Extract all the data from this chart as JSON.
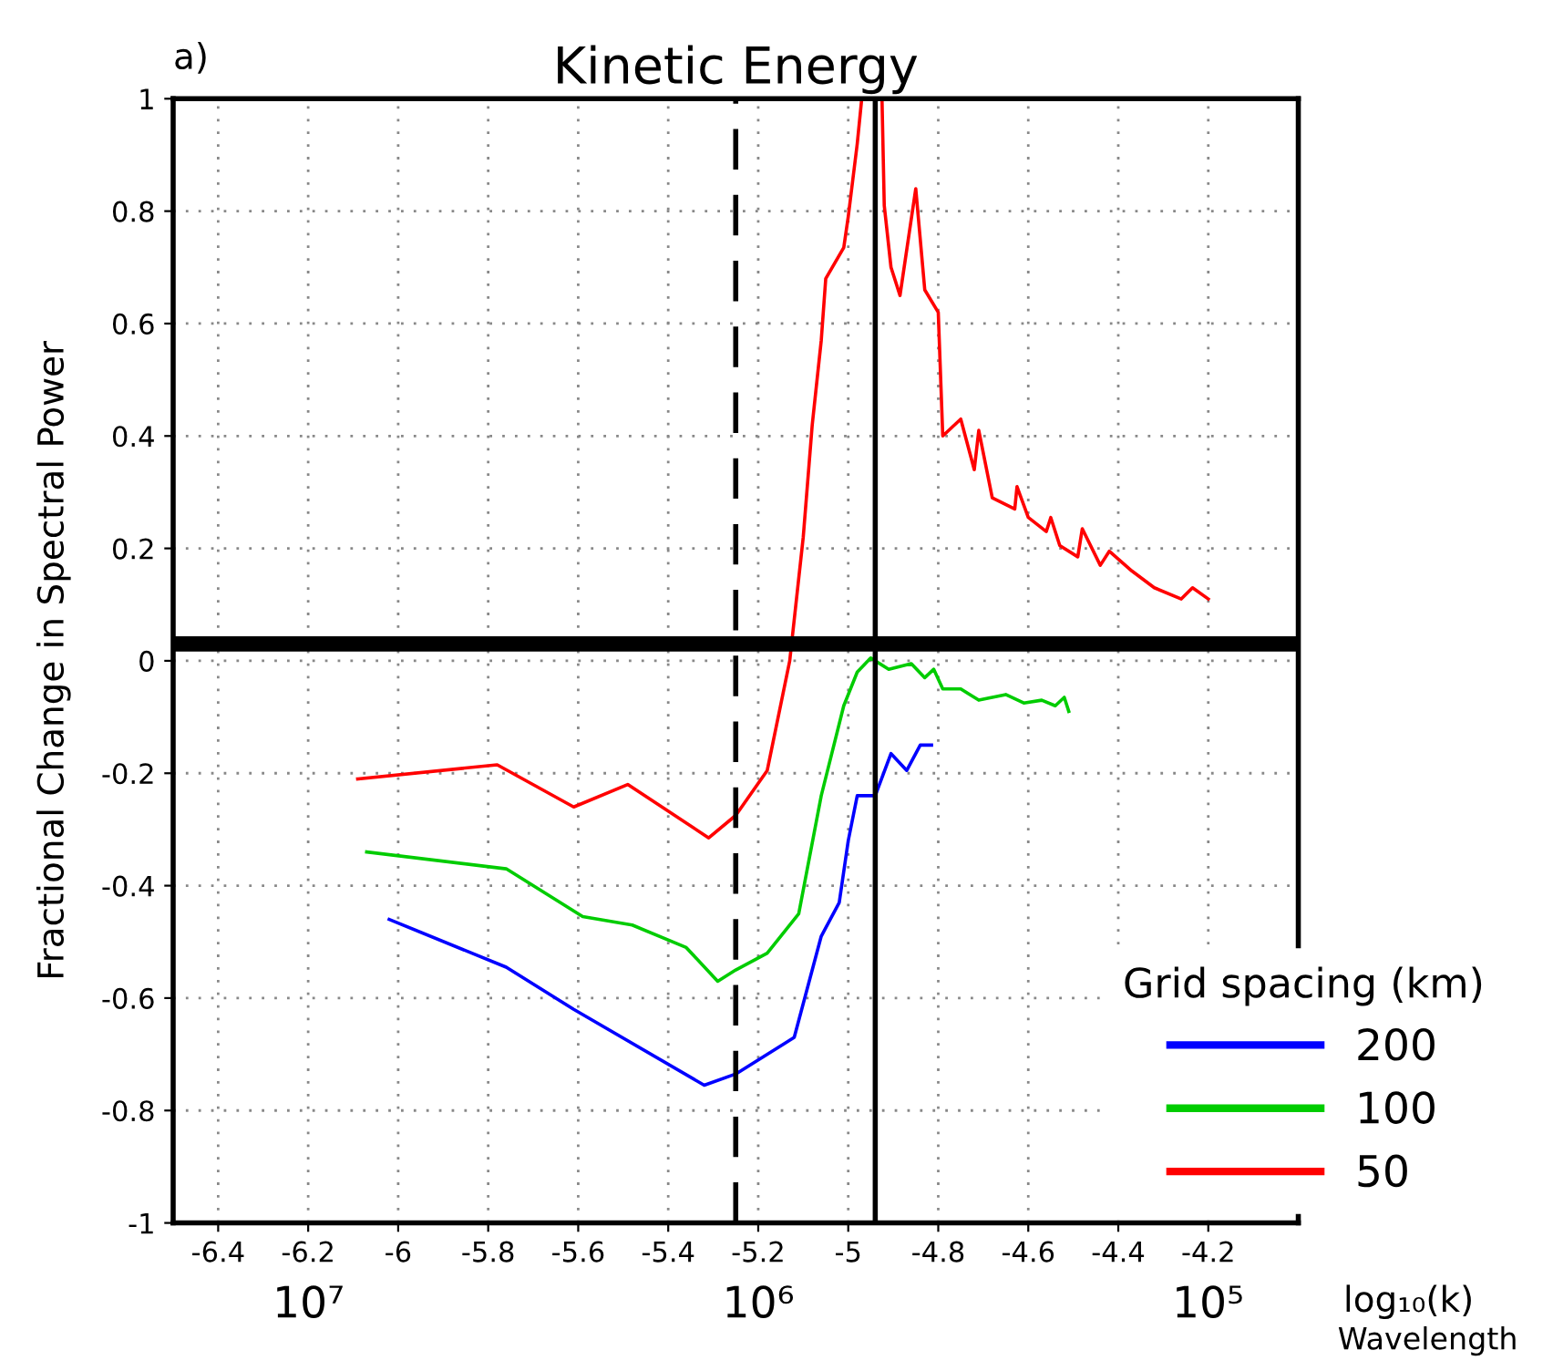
{
  "chart_data": {
    "type": "line",
    "title": "Kinetic Energy",
    "xlabel": "log₁₀(k)",
    "ylabel": "Fractional Change in Spectral Power",
    "x2label": "Wavelength",
    "legend_title": "Grid spacing (km)",
    "annotations": [
      "a)"
    ],
    "xlim": [
      -6.5,
      -4.0
    ],
    "xticks": [
      -6.4,
      -6.2,
      -6,
      -5.8,
      -5.6,
      -5.4,
      -5.2,
      -5,
      -4.8,
      -4.6,
      -4.4,
      -4.2
    ],
    "x2lim": [
      20000000,
      63000
    ],
    "x2ticks": [
      {
        "value": 10000000,
        "label": "10⁷"
      },
      {
        "value": 1000000,
        "label": "10⁶"
      },
      {
        "value": 100000,
        "label": "10⁵"
      }
    ],
    "log": "x2",
    "ylim": [
      -1,
      1
    ],
    "yticks": [
      -1,
      -0.8,
      -0.6,
      -0.4,
      -0.2,
      0,
      0.2,
      0.4,
      0.6,
      0.8,
      1
    ],
    "grid": true,
    "legend": "bottom right",
    "line_style": "solid",
    "marker": "none",
    "ref_lines": [
      {
        "axis": "y",
        "value": 0.03,
        "color": "#000000",
        "line_style": "solid"
      },
      {
        "axis": "x",
        "value": -5.25,
        "color": "#000000",
        "line_style": "dashed"
      },
      {
        "axis": "x",
        "value": -4.94,
        "color": "#000000",
        "line_style": "solid"
      }
    ],
    "series": [
      {
        "name": "200",
        "color": "#0000ff",
        "x": [
          -6.02,
          -5.76,
          -5.61,
          -5.32,
          -5.25,
          -5.14,
          -5.12,
          -5.06,
          -5.02,
          -5.0,
          -4.98,
          -4.94,
          -4.905,
          -4.87,
          -4.84,
          -4.815
        ],
        "values": [
          -0.46,
          -0.545,
          -0.62,
          -0.755,
          -0.735,
          -0.68,
          -0.67,
          -0.49,
          -0.43,
          -0.32,
          -0.24,
          -0.24,
          -0.165,
          -0.195,
          -0.15,
          -0.15
        ]
      },
      {
        "name": "100",
        "color": "#00cc00",
        "x": [
          -6.07,
          -5.76,
          -5.59,
          -5.48,
          -5.36,
          -5.29,
          -5.25,
          -5.18,
          -5.11,
          -5.06,
          -5.01,
          -4.98,
          -4.95,
          -4.91,
          -4.86,
          -4.83,
          -4.81,
          -4.79,
          -4.75,
          -4.71,
          -4.65,
          -4.61,
          -4.57,
          -4.54,
          -4.52,
          -4.51
        ],
        "values": [
          -0.34,
          -0.37,
          -0.455,
          -0.47,
          -0.51,
          -0.57,
          -0.55,
          -0.52,
          -0.45,
          -0.24,
          -0.08,
          -0.02,
          0.005,
          -0.015,
          -0.005,
          -0.03,
          -0.015,
          -0.05,
          -0.05,
          -0.07,
          -0.06,
          -0.075,
          -0.07,
          -0.08,
          -0.065,
          -0.09
        ]
      },
      {
        "name": "50",
        "color": "#ff0000",
        "x": [
          -6.09,
          -5.78,
          -5.61,
          -5.49,
          -5.31,
          -5.25,
          -5.18,
          -5.13,
          -5.1,
          -5.08,
          -5.06,
          -5.05,
          -5.01,
          -5.0,
          -4.98,
          -4.97,
          -4.925,
          -4.92,
          -4.905,
          -4.885,
          -4.85,
          -4.83,
          -4.8,
          -4.79,
          -4.75,
          -4.72,
          -4.71,
          -4.68,
          -4.63,
          -4.625,
          -4.6,
          -4.56,
          -4.55,
          -4.53,
          -4.49,
          -4.48,
          -4.44,
          -4.42,
          -4.37,
          -4.32,
          -4.26,
          -4.235,
          -4.2
        ],
        "values": [
          -0.21,
          -0.185,
          -0.26,
          -0.22,
          -0.315,
          -0.275,
          -0.195,
          0.0,
          0.22,
          0.42,
          0.57,
          0.68,
          0.735,
          0.79,
          0.92,
          1.0,
          1.0,
          0.81,
          0.7,
          0.65,
          0.84,
          0.66,
          0.62,
          0.4,
          0.43,
          0.34,
          0.41,
          0.29,
          0.27,
          0.31,
          0.255,
          0.23,
          0.255,
          0.205,
          0.185,
          0.235,
          0.17,
          0.195,
          0.16,
          0.13,
          0.11,
          0.13,
          0.11
        ]
      }
    ]
  }
}
